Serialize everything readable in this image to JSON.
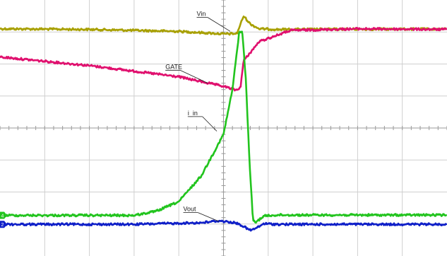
{
  "chart_data": {
    "type": "line",
    "title": "",
    "xlabel": "",
    "ylabel": "",
    "grid": true,
    "divisions": {
      "x": 10,
      "y": 8
    },
    "xlim": [
      -5,
      5
    ],
    "ylim": [
      -4,
      4
    ],
    "series": [
      {
        "name": "Vin",
        "color": "#a8a000",
        "points": [
          [
            -5,
            3.1
          ],
          [
            -3,
            3.08
          ],
          [
            -1,
            3.02
          ],
          [
            0,
            2.94
          ],
          [
            0.3,
            2.95
          ],
          [
            0.45,
            3.5
          ],
          [
            0.6,
            3.25
          ],
          [
            0.8,
            3.1
          ],
          [
            1.2,
            3.08
          ],
          [
            3,
            3.09
          ],
          [
            5,
            3.09
          ]
        ]
      },
      {
        "name": "GATE",
        "color": "#e0106e",
        "points": [
          [
            -5,
            2.22
          ],
          [
            -3,
            1.95
          ],
          [
            -1,
            1.6
          ],
          [
            0,
            1.3
          ],
          [
            0.3,
            1.18
          ],
          [
            0.38,
            1.28
          ],
          [
            0.45,
            2.1
          ],
          [
            0.8,
            2.7
          ],
          [
            1.5,
            3.05
          ],
          [
            3,
            3.1
          ],
          [
            5,
            3.08
          ]
        ]
      },
      {
        "name": "i_in",
        "color": "#22c41e",
        "points": [
          [
            -5,
            -2.73
          ],
          [
            -2,
            -2.73
          ],
          [
            -1.5,
            -2.6
          ],
          [
            -1,
            -2.3
          ],
          [
            -0.5,
            -1.5
          ],
          [
            0,
            -0.2
          ],
          [
            0.2,
            1.2
          ],
          [
            0.35,
            2.98
          ],
          [
            0.42,
            3.02
          ],
          [
            0.5,
            1.5
          ],
          [
            0.58,
            -1.0
          ],
          [
            0.66,
            -2.9
          ],
          [
            0.72,
            -2.95
          ],
          [
            0.9,
            -2.75
          ],
          [
            1.2,
            -2.72
          ],
          [
            3,
            -2.72
          ],
          [
            5,
            -2.72
          ]
        ]
      },
      {
        "name": "Vout",
        "color": "#1020c8",
        "points": [
          [
            -5,
            -3.01
          ],
          [
            -2,
            -3.01
          ],
          [
            -0.5,
            -2.96
          ],
          [
            -0.1,
            -2.9
          ],
          [
            0.2,
            -2.95
          ],
          [
            0.35,
            -3.0
          ],
          [
            0.6,
            -3.2
          ],
          [
            0.75,
            -3.12
          ],
          [
            0.9,
            -2.99
          ],
          [
            1.2,
            -3.01
          ],
          [
            3,
            -3.01
          ],
          [
            5,
            -3.01
          ]
        ]
      }
    ],
    "annotations": [
      {
        "text": "Vin",
        "series": "Vin",
        "tx": -0.6,
        "ty": 3.5,
        "px": 0.15,
        "py": 3.02
      },
      {
        "text": "GATE",
        "series": "GATE",
        "tx": -1.3,
        "ty": 1.85,
        "px": -0.35,
        "py": 1.4
      },
      {
        "text": "i_in",
        "series": "i_in",
        "tx": -0.8,
        "ty": 0.4,
        "px": -0.15,
        "py": -0.1
      },
      {
        "text": "Vout",
        "series": "Vout",
        "tx": -0.9,
        "ty": -2.6,
        "px": -0.1,
        "py": -2.92
      }
    ],
    "channel_markers": [
      {
        "text": "4",
        "y": -2.73,
        "color": "#22c41e"
      },
      {
        "text": "2",
        "y": -3.01,
        "color": "#1020c8"
      }
    ]
  }
}
